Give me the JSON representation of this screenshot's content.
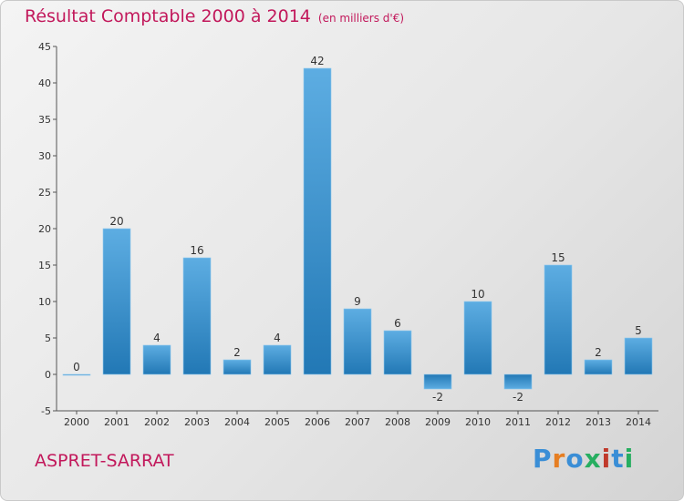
{
  "header": {
    "title": "Résultat Comptable 2000 à 2014",
    "subtitle": "(en milliers d'€)"
  },
  "footer": {
    "place": "ASPRET-SARRAT",
    "logo": "Proxiti"
  },
  "colors": {
    "title": "#c2185b",
    "bar_light": "#5dade2",
    "bar_dark": "#2278b5",
    "logo": [
      "#3a8ed6",
      "#e67e22",
      "#3a8ed6",
      "#27ae60",
      "#c0392b",
      "#3a8ed6",
      "#27ae60"
    ]
  },
  "chart_data": {
    "type": "bar",
    "categories": [
      "2000",
      "2001",
      "2002",
      "2003",
      "2004",
      "2005",
      "2006",
      "2007",
      "2008",
      "2009",
      "2010",
      "2011",
      "2012",
      "2013",
      "2014"
    ],
    "values": [
      0,
      20,
      4,
      16,
      2,
      4,
      42,
      9,
      6,
      -2,
      10,
      -2,
      15,
      2,
      5
    ],
    "ylim": [
      -5,
      45
    ],
    "yticks": [
      -5,
      0,
      5,
      10,
      15,
      20,
      25,
      30,
      35,
      40,
      45
    ],
    "grid": false,
    "data_labels": true
  }
}
